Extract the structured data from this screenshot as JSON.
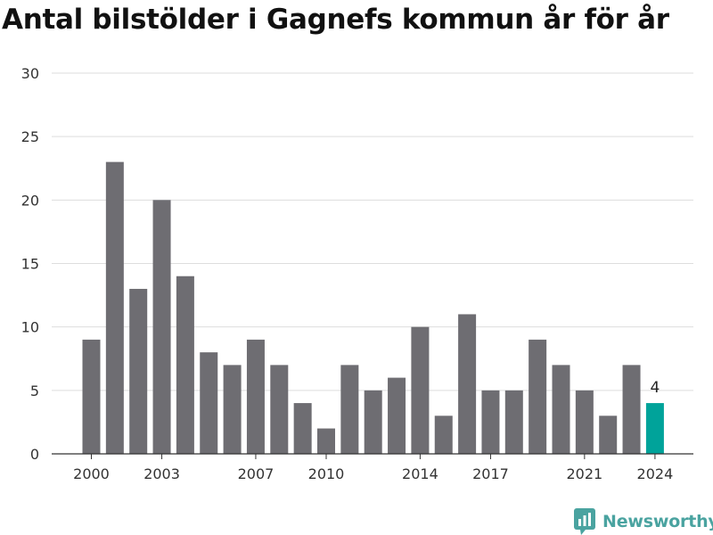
{
  "title": "Antal bilstölder i Gagnefs kommun år för år",
  "brand": {
    "name": "Newsworthy",
    "icon": "bar-chart-logo-icon"
  },
  "colors": {
    "bar": "#6e6d72",
    "highlight": "#00a39a",
    "grid": "#dddddd",
    "text": "#333333",
    "brand": "#4aa3a0"
  },
  "chart_data": {
    "type": "bar",
    "title": "Antal bilstölder i Gagnefs kommun år för år",
    "xlabel": "",
    "ylabel": "",
    "categories": [
      2000,
      2001,
      2002,
      2003,
      2004,
      2005,
      2006,
      2007,
      2008,
      2009,
      2010,
      2011,
      2012,
      2013,
      2014,
      2015,
      2016,
      2017,
      2018,
      2019,
      2020,
      2021,
      2022,
      2023,
      2024
    ],
    "values": [
      9,
      23,
      13,
      20,
      14,
      8,
      7,
      9,
      7,
      4,
      2,
      7,
      5,
      6,
      10,
      3,
      11,
      5,
      5,
      9,
      7,
      5,
      3,
      7,
      4
    ],
    "x_tick_labels": [
      "2000",
      "2003",
      "2007",
      "2010",
      "2014",
      "2017",
      "2021",
      "2024"
    ],
    "y_ticks": [
      0,
      5,
      10,
      15,
      20,
      25,
      30
    ],
    "ylim": [
      0,
      30
    ],
    "grid": true,
    "highlight_category": 2024,
    "data_labels": [
      {
        "category": 2024,
        "text": "4"
      }
    ]
  }
}
